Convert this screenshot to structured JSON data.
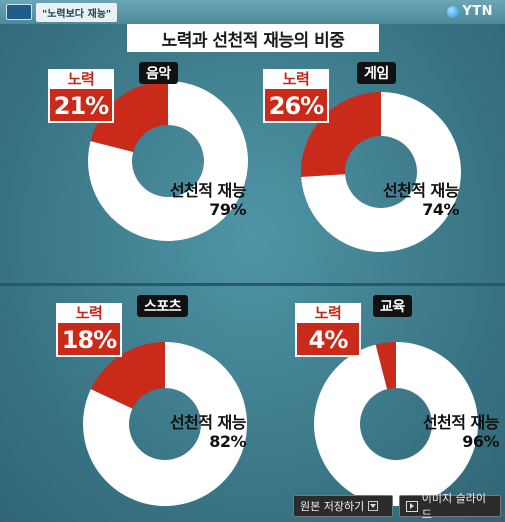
{
  "header": {
    "tag": "\"노력보다 재능\"",
    "logo": "YTN",
    "title": "노력과 선천적 재능의 비중"
  },
  "colors": {
    "effort": "#c92a1a",
    "talent": "#ffffff"
  },
  "chart_data": [
    {
      "type": "pie",
      "title": "음악",
      "slices": [
        {
          "label": "노력",
          "value": 21,
          "display": "21%"
        },
        {
          "label": "선천적 재능",
          "value": 79,
          "display": "79%"
        }
      ]
    },
    {
      "type": "pie",
      "title": "게임",
      "slices": [
        {
          "label": "노력",
          "value": 26,
          "display": "26%"
        },
        {
          "label": "선천적 재능",
          "value": 74,
          "display": "74%"
        }
      ]
    },
    {
      "type": "pie",
      "title": "스포츠",
      "slices": [
        {
          "label": "노력",
          "value": 18,
          "display": "18%"
        },
        {
          "label": "선천적 재능",
          "value": 82,
          "display": "82%"
        }
      ]
    },
    {
      "type": "pie",
      "title": "교육",
      "slices": [
        {
          "label": "노력",
          "value": 4,
          "display": "4%"
        },
        {
          "label": "선천적 재능",
          "value": 96,
          "display": "96%"
        }
      ]
    }
  ],
  "footer": {
    "save_label": "원본 저장하기",
    "slide_label": "이미지 슬라이드"
  }
}
